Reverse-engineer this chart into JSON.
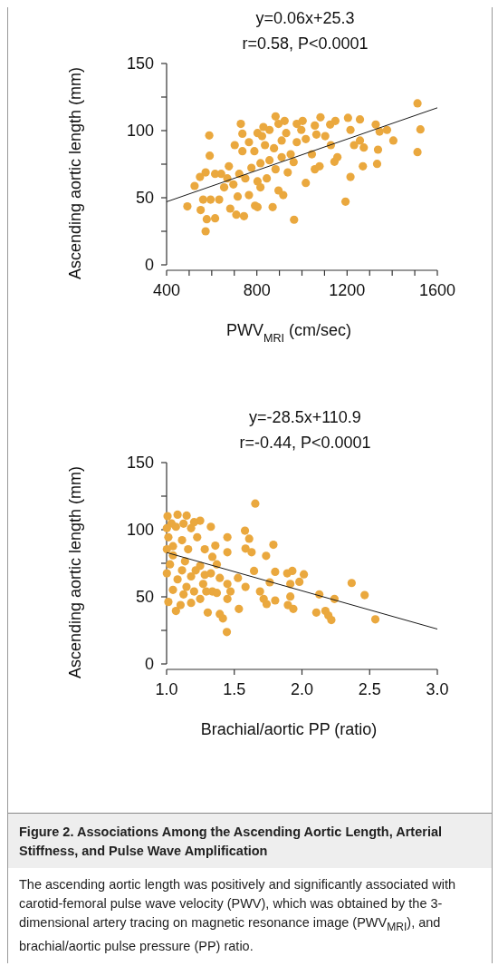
{
  "chart_data": [
    {
      "type": "scatter",
      "xlabel": "PWV$_{MRI}$ (cm/sec)",
      "ylabel": "Ascending aortic length (mm)",
      "annotations": [
        "y=0.06x+25.3",
        "r=0.58, P<0.0001"
      ],
      "xlim": [
        400,
        1600
      ],
      "xticks": [
        400,
        {
          "value": 500,
          "label": null
        },
        {
          "value": 600,
          "label": null
        },
        {
          "value": 700,
          "label": null
        },
        800,
        {
          "value": 900,
          "label": null
        },
        {
          "value": 1000,
          "label": null
        },
        {
          "value": 1100,
          "label": null
        },
        1200,
        {
          "value": 1300,
          "label": null
        },
        {
          "value": 1400,
          "label": null
        },
        {
          "value": 1500,
          "label": null
        },
        1600
      ],
      "ylim": [
        0,
        150
      ],
      "yticks": [
        0,
        {
          "value": 25,
          "label": null
        },
        50,
        {
          "value": 75,
          "label": null
        },
        100,
        {
          "value": 125,
          "label": null
        },
        150
      ],
      "series": [
        {
          "type": "scatter",
          "marker": "circle",
          "color": "#eaa83e",
          "x": [
            492,
            524,
            548,
            573,
            589,
            591,
            562,
            551,
            578,
            573,
            615,
            595,
            633,
            642,
            676,
            702,
            729,
            736,
            682,
            709,
            743,
            715,
            765,
            792,
            803,
            749,
            776,
            789,
            823,
            836,
            856,
            883,
            896,
            876,
            910,
            930,
            950,
            937,
            963,
            917,
            870,
            965,
            816,
            844,
            977,
            1003,
            1017,
            1044,
            1064,
            1057,
            1082,
            1057,
            1078,
            1017,
            1103,
            1128,
            1125,
            1148,
            1144,
            1157,
            1193,
            1204,
            1215,
            1215,
            1231,
            1257,
            1257,
            1274,
            1270,
            1327,
            1333,
            1337,
            1344,
            1377,
            1405,
            1512,
            1525,
            1512,
            829,
            803,
            923,
            910,
            856,
            696,
            655,
            669,
            615,
            736,
            765,
            803,
            896,
            722,
            977,
            997,
            816,
            883
          ],
          "values": [
            43.5,
            58.8,
            65.5,
            68.9,
            96.4,
            81.3,
            48.6,
            40.8,
            34,
            25,
            34.7,
            48.6,
            48.6,
            67.8,
            73.4,
            89.2,
            105,
            97.7,
            41.9,
            37.4,
            36.3,
            50.9,
            52,
            44.1,
            43,
            64.4,
            72.3,
            84.7,
            95.9,
            89.2,
            100.5,
            110.6,
            105,
            86.9,
            92.6,
            98.2,
            82.4,
            68.9,
            76.6,
            52,
            43,
            33.6,
            57.7,
            64.4,
            105,
            107.2,
            93.7,
            82.4,
            97.1,
            103.8,
            109.9,
            71.2,
            73.4,
            61,
            95.9,
            89.2,
            104.5,
            107.2,
            76.8,
            80.2,
            47.1,
            109.5,
            100.5,
            65.5,
            89.2,
            108.3,
            92.6,
            87.4,
            73.4,
            104.5,
            75.2,
            85.8,
            99.3,
            100.5,
            92.6,
            120.3,
            100.9,
            84,
            102.7,
            98.2,
            107.2,
            80.2,
            77.9,
            59.9,
            57.7,
            64.4,
            67.8,
            84.7,
            91.4,
            62.2,
            55.4,
            67.8,
            91.4,
            100.5,
            75.7,
            71.2
          ]
        },
        {
          "type": "line",
          "marker": "none",
          "color": "#1a1a1a",
          "x": [
            400,
            1600
          ],
          "values": [
            47,
            117
          ]
        }
      ]
    },
    {
      "type": "scatter",
      "xlabel": "Brachial/aortic PP (ratio)",
      "ylabel": "Ascending aortic length (mm)",
      "annotations": [
        "y=-28.5x+110.9",
        "r=-0.44, P<0.0001"
      ],
      "xlim": [
        1,
        3
      ],
      "xticks": [
        {
          "value": 1,
          "label": "1.0"
        },
        1.5,
        {
          "value": 2,
          "label": "2.0"
        },
        2.5,
        {
          "value": 3,
          "label": "3.0"
        }
      ],
      "ylim": [
        0,
        150
      ],
      "yticks": [
        0,
        {
          "value": 25,
          "label": null
        },
        50,
        {
          "value": 75,
          "label": null
        },
        100,
        {
          "value": 125,
          "label": null
        },
        150
      ],
      "series": [
        {
          "type": "scatter",
          "marker": "circle",
          "color": "#eaa83e",
          "x": [
            1.007,
            1.081,
            1.148,
            1.248,
            1.327,
            1.069,
            1.181,
            1.013,
            1.114,
            1.226,
            1.36,
            1.449,
            1.449,
            1.338,
            1.047,
            1.136,
            1.248,
            1.371,
            1.327,
            1.393,
            1.002,
            1.081,
            1.181,
            1.27,
            1.338,
            1.449,
            1.527,
            1.583,
            1.449,
            1.371,
            1.248,
            1.181,
            1.103,
            1.013,
            1.069,
            1.304,
            1.393,
            1.416,
            1.445,
            1.534,
            1.655,
            1.579,
            1.61,
            1.583,
            1.628,
            1.646,
            1.69,
            1.717,
            1.739,
            1.735,
            1.789,
            1.762,
            1.802,
            1.802,
            1.891,
            1.929,
            1.914,
            1.914,
            1.896,
            1.936,
            1.981,
            2.014,
            2.106,
            2.128,
            2.173,
            2.195,
            2.217,
            2.24,
            2.367,
            2.463,
            2.542,
            1.036,
            1.125,
            1.203,
            1.047,
            1.159,
            1.282,
            1.025,
            1.114,
            1.215,
            1.282,
            1.047,
            1.147,
            1.203,
            1.293,
            1.125,
            1.002,
            1.002,
            1.472
          ],
          "values": [
            110.1,
            111.2,
            110.5,
            106.7,
            102.2,
            102.2,
            101.1,
            94.4,
            92.2,
            94.4,
            88.1,
            94.4,
            83.2,
            79.8,
            80.9,
            76.5,
            73.1,
            74.2,
            67.5,
            64.1,
            67.5,
            63,
            65.2,
            59.6,
            54,
            59.6,
            64.1,
            57.4,
            48.4,
            52.9,
            48.4,
            45.5,
            43.9,
            46.2,
            39.5,
            38.3,
            37.2,
            33.9,
            23.8,
            41,
            119.5,
            99.3,
            93.3,
            85.9,
            83.2,
            69.3,
            54,
            48.4,
            44.6,
            80.5,
            88.8,
            60.8,
            68.6,
            47.3,
            67.5,
            69.3,
            59.6,
            50.2,
            43.9,
            41,
            61.2,
            66.8,
            38.3,
            51.8,
            39.5,
            36.1,
            32.7,
            48.4,
            60.3,
            51.3,
            33.2,
            104.7,
            104.5,
            105.6,
            87.7,
            85.4,
            85.4,
            74.2,
            69.7,
            69.7,
            66.4,
            55.2,
            57.4,
            54,
            54,
            51.8,
            85.4,
            101.1,
            54
          ]
        },
        {
          "type": "line",
          "marker": "none",
          "color": "#1a1a1a",
          "x": [
            1,
            3
          ],
          "values": [
            83,
            26
          ]
        }
      ]
    },
    {
      "type": "other",
      "title": "Figure 2. Associations Among the Ascending Aortic Length, Arterial Stiffness, and Pulse Wave Amplification",
      "annotations": [
        "The ascending aortic length was positively and significantly associated with carotid-femoral pulse wave velocity (PWV), which was obtained by the 3-dimensional artery tracing on magnetic resonance image (PWV$_{MRI}$), and brachial/aortic pulse pressure (PP) ratio."
      ]
    }
  ]
}
